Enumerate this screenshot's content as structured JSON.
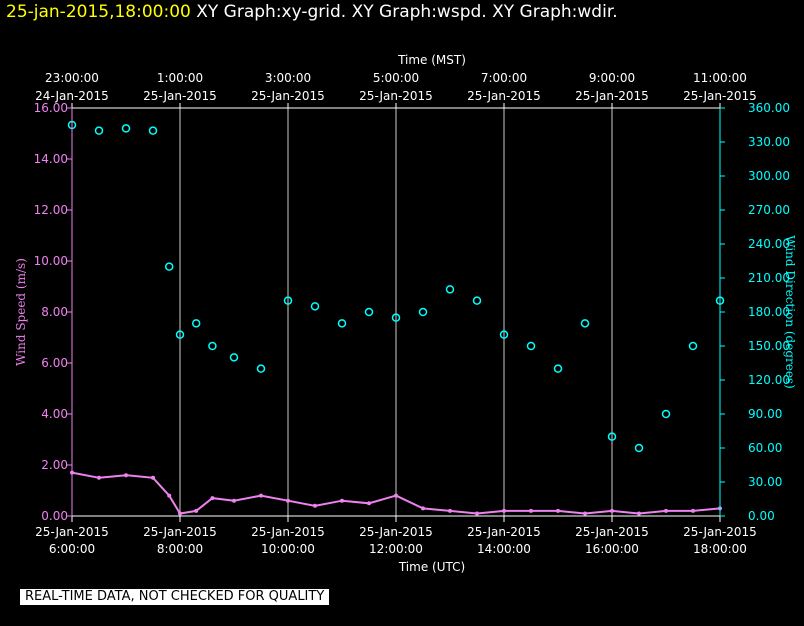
{
  "header": {
    "timestamp": "25-jan-2015,18:00:00",
    "graphs": [
      "XY Graph:xy-grid.",
      "XY Graph:wspd.",
      "XY Graph:wdir."
    ]
  },
  "qc_banner": "REAL-TIME DATA, NOT CHECKED FOR QUALITY",
  "colors": {
    "background": "#000000",
    "header_ts": "#ffff00",
    "wspd": "#ee82ee",
    "wdir": "#00ffff",
    "axis": "#ffffff"
  },
  "chart_data": {
    "type": "scatter",
    "top_axis": {
      "title": "Time (MST)",
      "ticks": [
        {
          "time": "23:00:00",
          "date": "24-Jan-2015"
        },
        {
          "time": "1:00:00",
          "date": "25-Jan-2015"
        },
        {
          "time": "3:00:00",
          "date": "25-Jan-2015"
        },
        {
          "time": "5:00:00",
          "date": "25-Jan-2015"
        },
        {
          "time": "7:00:00",
          "date": "25-Jan-2015"
        },
        {
          "time": "9:00:00",
          "date": "25-Jan-2015"
        },
        {
          "time": "11:00:00",
          "date": "25-Jan-2015"
        }
      ]
    },
    "bottom_axis": {
      "title": "Time (UTC)",
      "ticks": [
        {
          "date": "25-Jan-2015",
          "time": "6:00:00"
        },
        {
          "date": "25-Jan-2015",
          "time": "8:00:00"
        },
        {
          "date": "25-Jan-2015",
          "time": "10:00:00"
        },
        {
          "date": "25-Jan-2015",
          "time": "12:00:00"
        },
        {
          "date": "25-Jan-2015",
          "time": "14:00:00"
        },
        {
          "date": "25-Jan-2015",
          "time": "16:00:00"
        },
        {
          "date": "25-Jan-2015",
          "time": "18:00:00"
        }
      ],
      "range_hours_utc": [
        6,
        18
      ]
    },
    "left_axis": {
      "label": "Wind Speed (m/s)",
      "range": [
        0,
        16
      ],
      "ticks": [
        "0.00",
        "2.00",
        "4.00",
        "6.00",
        "8.00",
        "10.00",
        "12.00",
        "14.00",
        "16.00"
      ]
    },
    "right_axis": {
      "label": "Wind Direction (degrees)",
      "range": [
        0,
        360
      ],
      "ticks": [
        "0.00",
        "30.00",
        "60.00",
        "90.00",
        "120.00",
        "150.00",
        "180.00",
        "210.00",
        "240.00",
        "270.00",
        "300.00",
        "330.00",
        "360.00"
      ]
    },
    "vertical_grid_hours_utc": [
      8,
      10,
      12,
      14,
      16
    ],
    "series": [
      {
        "name": "wspd",
        "axis": "left",
        "style": "line",
        "x": [
          6.0,
          6.5,
          7.0,
          7.5,
          7.8,
          8.0,
          8.3,
          8.6,
          9.0,
          9.5,
          10.0,
          10.5,
          11.0,
          11.5,
          12.0,
          12.5,
          13.0,
          13.5,
          14.0,
          14.5,
          15.0,
          15.5,
          16.0,
          16.5,
          17.0,
          17.5,
          18.0
        ],
        "values": [
          1.7,
          1.5,
          1.6,
          1.5,
          0.8,
          0.1,
          0.2,
          0.7,
          0.6,
          0.8,
          0.6,
          0.4,
          0.6,
          0.5,
          0.8,
          0.3,
          0.2,
          0.1,
          0.2,
          0.2,
          0.2,
          0.1,
          0.2,
          0.1,
          0.2,
          0.2,
          0.3
        ]
      },
      {
        "name": "wdir",
        "axis": "right",
        "style": "scatter",
        "x": [
          6.0,
          6.5,
          7.0,
          7.5,
          7.8,
          8.0,
          8.3,
          8.6,
          9.0,
          9.5,
          10.0,
          10.5,
          11.0,
          11.5,
          12.0,
          12.5,
          13.0,
          13.5,
          14.0,
          14.5,
          15.0,
          15.5,
          16.0,
          16.5,
          17.0,
          17.5,
          18.0
        ],
        "values": [
          345,
          340,
          342,
          340,
          220,
          160,
          170,
          150,
          140,
          130,
          190,
          185,
          170,
          180,
          175,
          180,
          200,
          190,
          160,
          150,
          130,
          170,
          70,
          60,
          90,
          150,
          190
        ]
      }
    ]
  }
}
